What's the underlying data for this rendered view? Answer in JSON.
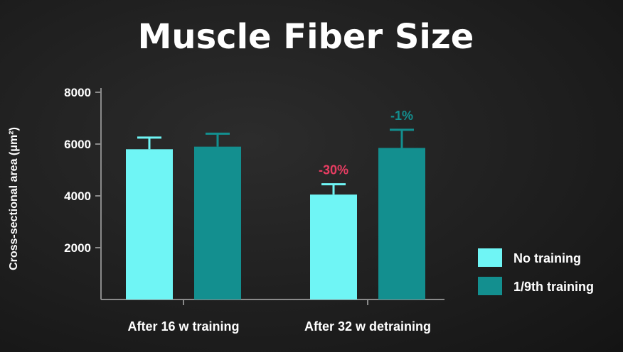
{
  "chart_data": {
    "type": "bar",
    "title": "Muscle Fiber Size",
    "ylabel": "Cross-sectional area (μm²)",
    "xlabel": "",
    "ylim": [
      0,
      8000
    ],
    "yticks": [
      2000,
      4000,
      6000,
      8000
    ],
    "categories": [
      "After 16 w training",
      "After 32 w detraining"
    ],
    "series": [
      {
        "name": "No training",
        "color": "#6ff5f5",
        "values": [
          5800,
          4050
        ],
        "errors": [
          450,
          400
        ]
      },
      {
        "name": "1/9th training",
        "color": "#138f8f",
        "values": [
          5900,
          5850
        ],
        "errors": [
          500,
          700
        ]
      }
    ],
    "annotations": [
      {
        "text": "-30%",
        "category": 1,
        "series": 0,
        "color": "#e83d62"
      },
      {
        "text": "-1%",
        "category": 1,
        "series": 1,
        "color": "#138f8f"
      }
    ],
    "legend_position": "right",
    "grid": false
  }
}
